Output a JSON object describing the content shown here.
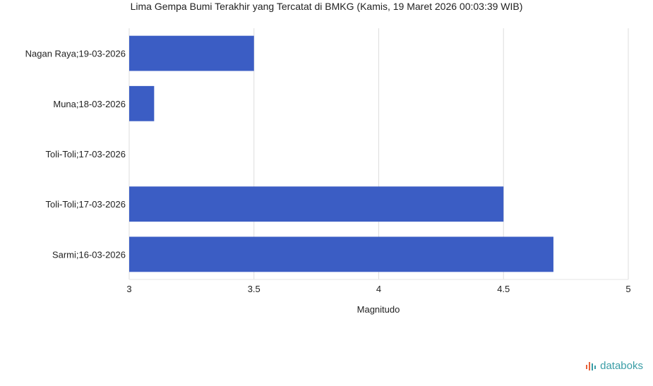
{
  "chart_data": {
    "type": "bar",
    "orientation": "horizontal",
    "title": "Lima Gempa Bumi Terakhir yang Tercatat di BMKG (Kamis, 19 Maret 2026 00:03:39 WIB)",
    "xlabel": "Magnitudo",
    "ylabel": "",
    "xlim": [
      3,
      5
    ],
    "xticks": [
      "3",
      "3.5",
      "4",
      "4.5",
      "5"
    ],
    "grid": true,
    "categories": [
      "Nagan Raya;19-03-2026",
      "Muna;18-03-2026",
      "Toli-Toli;17-03-2026",
      "Toli-Toli;17-03-2026",
      "Sarmi;16-03-2026"
    ],
    "values": [
      3.5,
      3.1,
      3.0,
      4.5,
      4.7
    ],
    "bar_color": "#3b5dc4"
  },
  "brand": {
    "name": "databoks",
    "icon": "databoks-logo-icon",
    "color": "#3a9da6"
  }
}
